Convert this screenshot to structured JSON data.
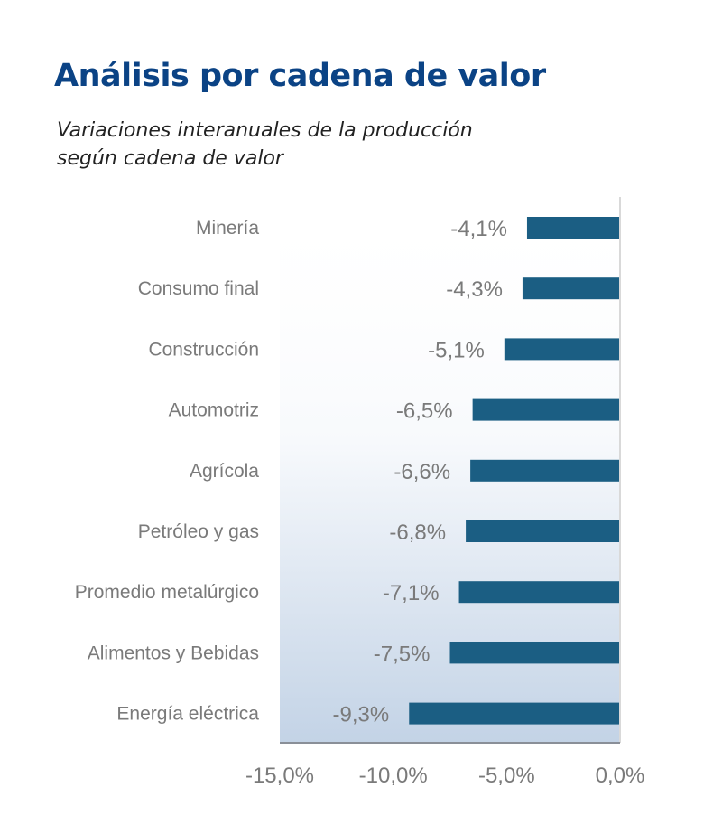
{
  "header": {
    "title": "Análisis por cadena de valor",
    "subtitle_lines": [
      "Variaciones interanuales de la producción",
      "según cadena de valor"
    ]
  },
  "colors": {
    "title": "#0b4385",
    "bar": "#1b5e83",
    "label": "#7a7a7a",
    "gradient_bottom": "#c3d3e6"
  },
  "chart_data": {
    "type": "bar",
    "orientation": "horizontal",
    "title": "Análisis por cadena de valor",
    "subtitle": "Variaciones interanuales de la producción según cadena de valor",
    "categories": [
      "Minería",
      "Consumo final",
      "Construcción",
      "Automotriz",
      "Agrícola",
      "Petróleo y gas",
      "Promedio metalúrgico",
      "Alimentos y Bebidas",
      "Energía eléctrica"
    ],
    "values": [
      -4.1,
      -4.3,
      -5.1,
      -6.5,
      -6.6,
      -6.8,
      -7.1,
      -7.5,
      -9.3
    ],
    "value_labels": [
      "-4,1%",
      "-4,3%",
      "-5,1%",
      "-6,5%",
      "-6,6%",
      "-6,8%",
      "-7,1%",
      "-7,5%",
      "-9,3%"
    ],
    "xlim": [
      -15,
      0
    ],
    "xticks": [
      -15,
      -10,
      -5,
      0
    ],
    "xtick_labels": [
      "-15,0%",
      "-10,0%",
      "-5,0%",
      "0,0%"
    ],
    "xlabel": "",
    "ylabel": "",
    "grid": false,
    "legend": "none"
  }
}
